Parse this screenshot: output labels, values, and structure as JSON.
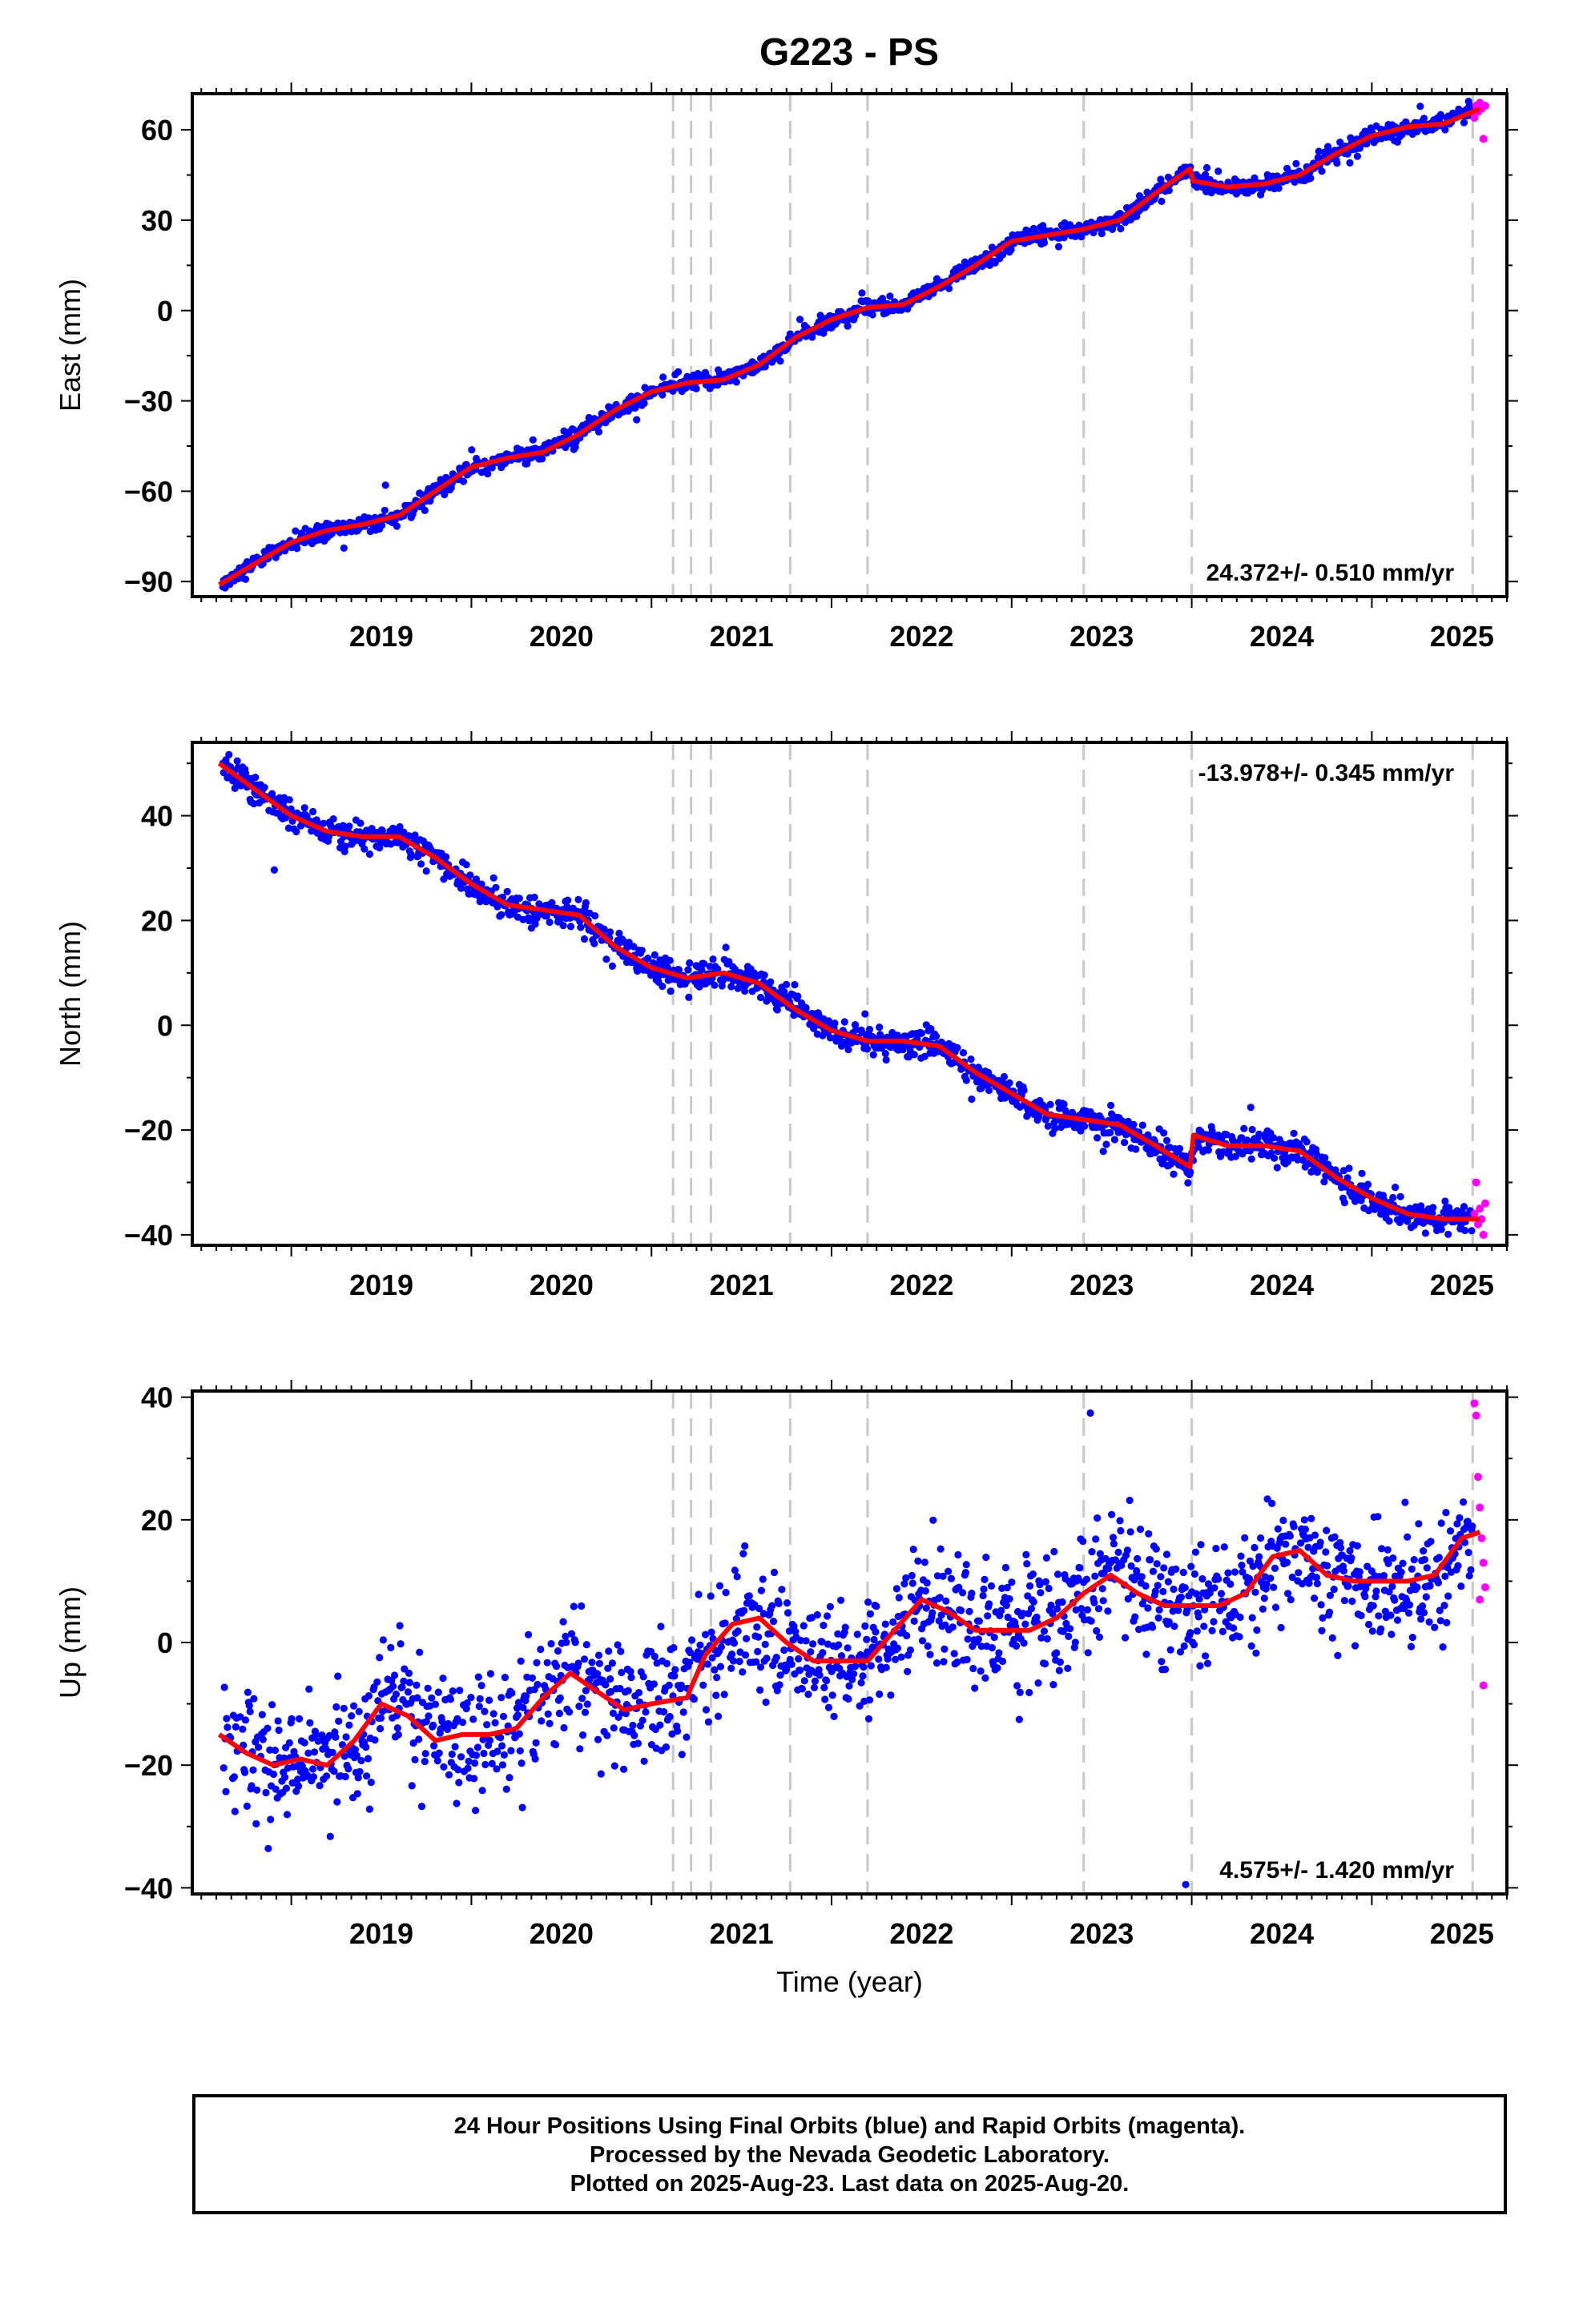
{
  "title": "G223 - PS",
  "colors": {
    "final_points": "#0000ff",
    "rapid_points": "#ff00ff",
    "model_line": "#ff0000",
    "event_lines": "#c8c8c8"
  },
  "footer": {
    "line1": "24 Hour Positions Using Final Orbits (blue) and Rapid Orbits (magenta).",
    "line2": "Processed by the Nevada Geodetic Laboratory.",
    "line3": "Plotted on 2025-Aug-23. Last data on 2025-Aug-20."
  },
  "chart_data": [
    {
      "type": "scatter",
      "component": "east",
      "ylabel": "East (mm)",
      "xlabel": "",
      "xlim": [
        2018.45,
        2025.75
      ],
      "ylim": [
        -95,
        72
      ],
      "yticks": [
        -90,
        -60,
        -30,
        0,
        30,
        60
      ],
      "xticks": [
        2019,
        2020,
        2021,
        2022,
        2023,
        2024,
        2025
      ],
      "rate_label": "24.372+/- 0.510 mm/yr",
      "rate_position": "bottom-right",
      "event_lines": [
        2021.12,
        2021.22,
        2021.33,
        2021.77,
        2022.2,
        2023.4,
        2024.0,
        2025.56
      ],
      "model": {
        "x": [
          2018.6,
          2018.8,
          2019.0,
          2019.2,
          2019.4,
          2019.6,
          2019.8,
          2020.0,
          2020.2,
          2020.4,
          2020.6,
          2020.8,
          2021.0,
          2021.2,
          2021.4,
          2021.6,
          2021.8,
          2022.0,
          2022.2,
          2022.4,
          2022.6,
          2022.8,
          2023.0,
          2023.2,
          2023.4,
          2023.6,
          2023.8,
          2023.99,
          2024.01,
          2024.2,
          2024.4,
          2024.6,
          2024.8,
          2025.0,
          2025.2,
          2025.4,
          2025.6
        ],
        "y": [
          -91,
          -84,
          -77,
          -73,
          -71,
          -68,
          -60,
          -52,
          -49,
          -47,
          -41,
          -33,
          -27,
          -24,
          -23,
          -18,
          -9,
          -3,
          1,
          2,
          8,
          15,
          23,
          25,
          27,
          30,
          39,
          47,
          43,
          41,
          42,
          45,
          52,
          58,
          61,
          62,
          67
        ]
      },
      "rapid_points": {
        "x": [
          2025.57,
          2025.58,
          2025.59,
          2025.6,
          2025.61,
          2025.62,
          2025.63
        ],
        "y": [
          64,
          68,
          66,
          69,
          67,
          57,
          68
        ]
      }
    },
    {
      "type": "scatter",
      "component": "north",
      "ylabel": "North (mm)",
      "xlabel": "",
      "xlim": [
        2018.45,
        2025.75
      ],
      "ylim": [
        -42,
        54
      ],
      "yticks": [
        -40,
        -20,
        0,
        20,
        40
      ],
      "xticks": [
        2019,
        2020,
        2021,
        2022,
        2023,
        2024,
        2025
      ],
      "rate_label": "-13.978+/- 0.345 mm/yr",
      "rate_position": "top-right",
      "event_lines": [
        2021.12,
        2021.22,
        2021.33,
        2021.77,
        2022.2,
        2023.4,
        2024.0,
        2025.56
      ],
      "model": {
        "x": [
          2018.6,
          2018.8,
          2019.0,
          2019.2,
          2019.4,
          2019.6,
          2019.8,
          2020.0,
          2020.2,
          2020.4,
          2020.6,
          2020.8,
          2021.0,
          2021.2,
          2021.4,
          2021.6,
          2021.8,
          2022.0,
          2022.2,
          2022.4,
          2022.6,
          2022.8,
          2023.0,
          2023.2,
          2023.4,
          2023.6,
          2023.8,
          2023.99,
          2024.01,
          2024.2,
          2024.4,
          2024.6,
          2024.8,
          2025.0,
          2025.2,
          2025.4,
          2025.6
        ],
        "y": [
          50,
          45,
          40,
          37,
          36,
          36,
          32,
          27,
          23,
          22,
          21,
          15,
          11,
          9,
          10,
          8,
          3,
          -1,
          -3,
          -3,
          -4,
          -9,
          -13,
          -17,
          -18,
          -19,
          -23,
          -27,
          -21,
          -23,
          -23,
          -24,
          -29,
          -33,
          -36,
          -37,
          -37
        ]
      },
      "rapid_points": {
        "x": [
          2025.57,
          2025.58,
          2025.59,
          2025.6,
          2025.61,
          2025.62,
          2025.63
        ],
        "y": [
          -36,
          -30,
          -38,
          -35,
          -37,
          -40,
          -34
        ]
      }
    },
    {
      "type": "scatter",
      "component": "up",
      "ylabel": "Up (mm)",
      "xlabel": "Time (year)",
      "xlim": [
        2018.45,
        2025.75
      ],
      "ylim": [
        -41,
        41
      ],
      "yticks": [
        -40,
        -20,
        0,
        20,
        40
      ],
      "xticks": [
        2019,
        2020,
        2021,
        2022,
        2023,
        2024,
        2025
      ],
      "rate_label": "4.575+/- 1.420 mm/yr",
      "rate_position": "bottom-right",
      "event_lines": [
        2021.12,
        2021.22,
        2021.33,
        2021.77,
        2022.2,
        2023.4,
        2024.0,
        2025.56
      ],
      "model": {
        "x": [
          2018.6,
          2018.75,
          2018.9,
          2019.05,
          2019.2,
          2019.35,
          2019.5,
          2019.65,
          2019.8,
          2019.95,
          2020.1,
          2020.25,
          2020.4,
          2020.55,
          2020.7,
          2020.85,
          2021.0,
          2021.2,
          2021.21,
          2021.3,
          2021.45,
          2021.6,
          2021.75,
          2021.9,
          2022.05,
          2022.2,
          2022.35,
          2022.5,
          2022.65,
          2022.8,
          2022.95,
          2023.1,
          2023.25,
          2023.4,
          2023.55,
          2023.7,
          2023.85,
          2024.0,
          2024.15,
          2024.3,
          2024.45,
          2024.6,
          2024.75,
          2024.9,
          2025.05,
          2025.2,
          2025.35,
          2025.5,
          2025.6
        ],
        "y": [
          -15,
          -18,
          -20,
          -19,
          -20,
          -16,
          -10,
          -12,
          -16,
          -15,
          -15,
          -14,
          -9,
          -5,
          -8,
          -11,
          -10,
          -9,
          -8,
          -2,
          3,
          4,
          0,
          -3,
          -3,
          -3,
          2,
          7,
          5,
          2,
          2,
          2,
          4,
          8,
          11,
          8,
          6,
          6,
          6,
          8,
          14,
          15,
          11,
          10,
          10,
          10,
          11,
          17,
          18
        ]
      },
      "rapid_points": {
        "x": [
          2025.57,
          2025.58,
          2025.59,
          2025.6,
          2025.61,
          2025.62,
          2025.63,
          2025.6,
          2025.62
        ],
        "y": [
          39,
          37,
          27,
          22,
          17,
          13,
          9,
          7,
          -7
        ]
      }
    }
  ]
}
